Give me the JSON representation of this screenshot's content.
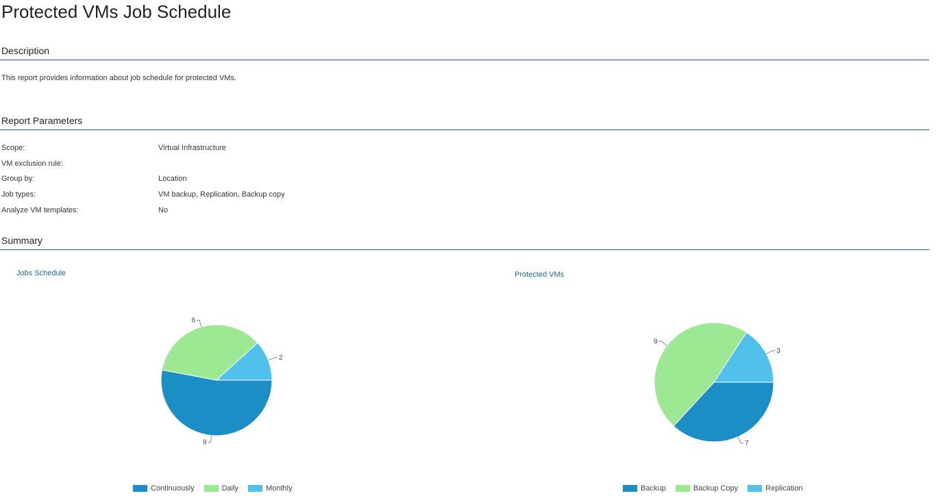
{
  "page": {
    "title": "Protected VMs Job Schedule"
  },
  "description": {
    "header": "Description",
    "text": "This report provides information about job schedule for protected VMs."
  },
  "parameters": {
    "header": "Report Parameters",
    "rows": [
      {
        "label": "Scope:",
        "value": "Virtual Infrastructure"
      },
      {
        "label": "VM exclusion rule:",
        "value": ""
      },
      {
        "label": "Group by:",
        "value": "Location"
      },
      {
        "label": "Job types:",
        "value": "VM backup, Replication, Backup copy"
      },
      {
        "label": "Analyze VM templates:",
        "value": "No"
      }
    ]
  },
  "summary": {
    "header": "Summary"
  },
  "colors": {
    "dark_blue": "#1b8ec6",
    "light_green": "#9de893",
    "light_blue": "#4fc1ec"
  },
  "chart_data": [
    {
      "type": "pie",
      "title": "Jobs Schedule",
      "categories": [
        "Continuously",
        "Daily",
        "Monthly"
      ],
      "values": [
        9,
        6,
        2
      ],
      "colors": [
        "#1b8ec6",
        "#9de893",
        "#4fc1ec"
      ],
      "legend": "bottom"
    },
    {
      "type": "pie",
      "title": "Protected VMs",
      "categories": [
        "Backup",
        "Backup Copy",
        "Replication"
      ],
      "values": [
        7,
        9,
        3
      ],
      "colors": [
        "#1b8ec6",
        "#9de893",
        "#4fc1ec"
      ],
      "legend": "bottom"
    }
  ]
}
